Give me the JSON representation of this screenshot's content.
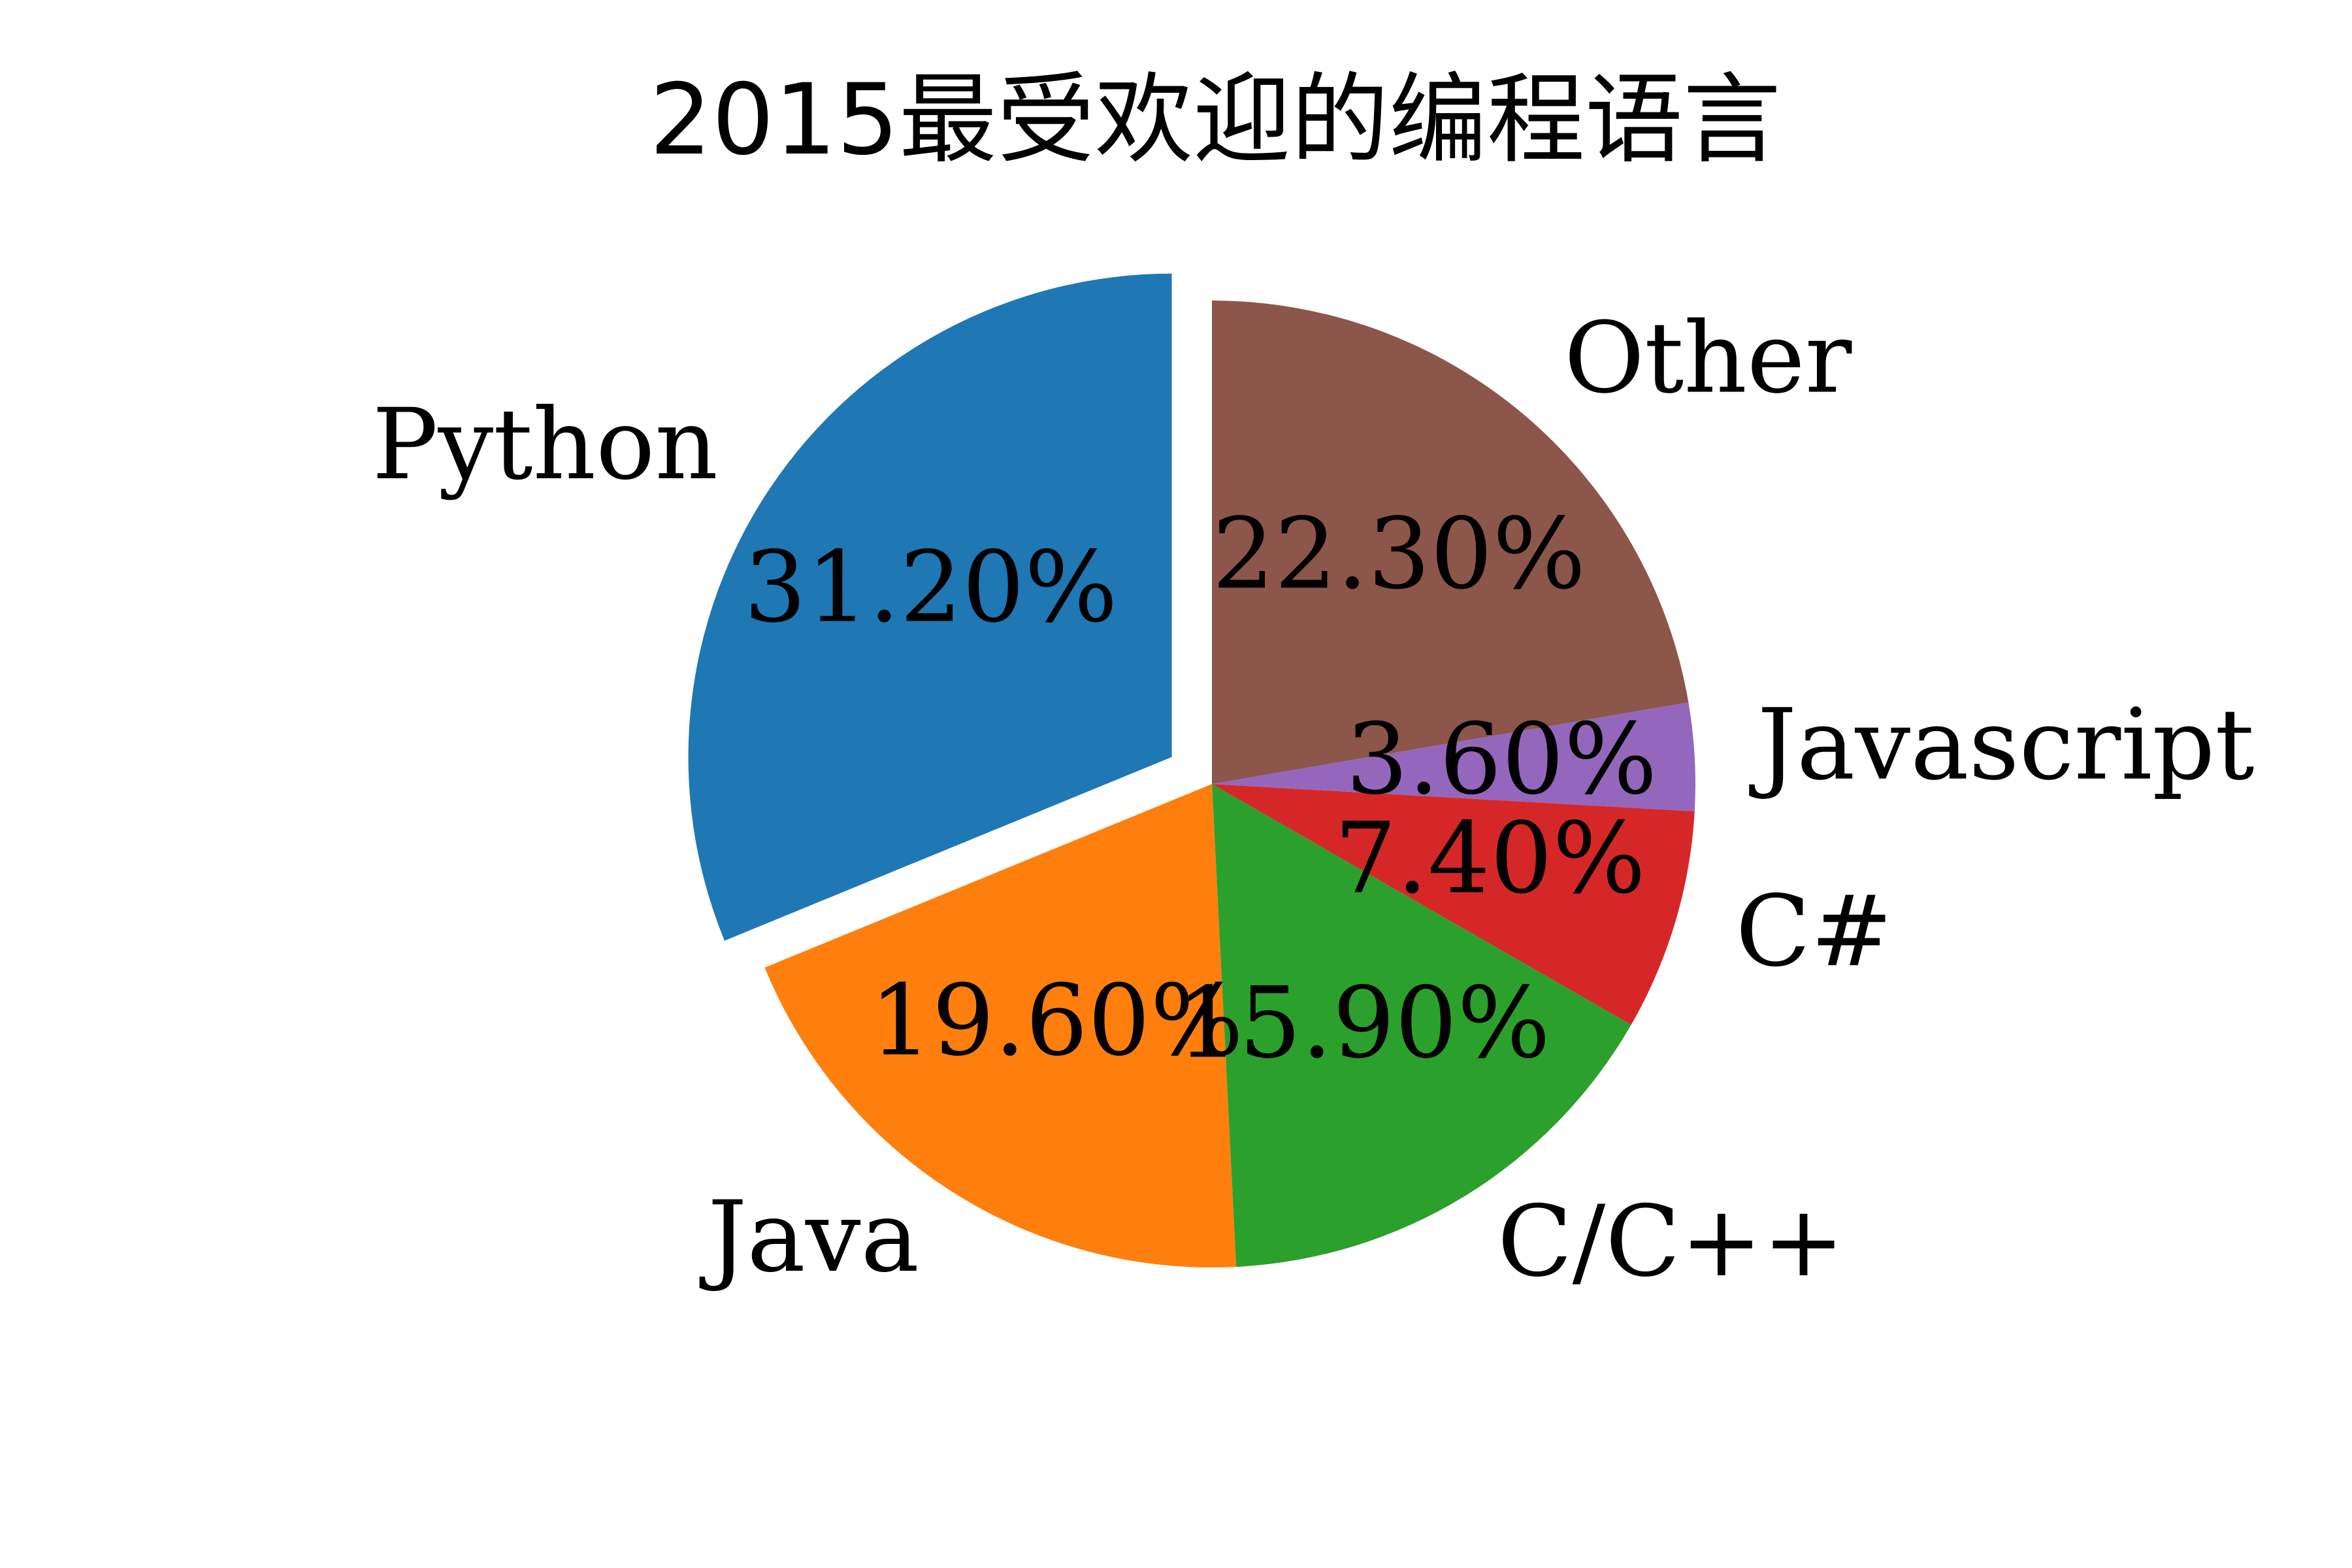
{
  "chart_data": {
    "type": "pie",
    "title": "2015最受欢迎的编程语言",
    "slices": [
      {
        "label": "Python",
        "value": 31.2,
        "pct_text": "31.20%",
        "color": "#1f77b4",
        "explode": true
      },
      {
        "label": "Java",
        "value": 19.6,
        "pct_text": "19.60%",
        "color": "#ff7f0e",
        "explode": false
      },
      {
        "label": "C/C++",
        "value": 15.9,
        "pct_text": "15.90%",
        "color": "#2ca02c",
        "explode": false
      },
      {
        "label": "C#",
        "value": 7.4,
        "pct_text": "7.40%",
        "color": "#d62728",
        "explode": false
      },
      {
        "label": "Javascript",
        "value": 3.6,
        "pct_text": "3.60%",
        "color": "#9467bd",
        "explode": false
      },
      {
        "label": "Other",
        "value": 22.3,
        "pct_text": "22.30%",
        "color": "#8c564b",
        "explode": false
      }
    ],
    "start_angle_deg": 90,
    "direction": "counterclockwise"
  }
}
